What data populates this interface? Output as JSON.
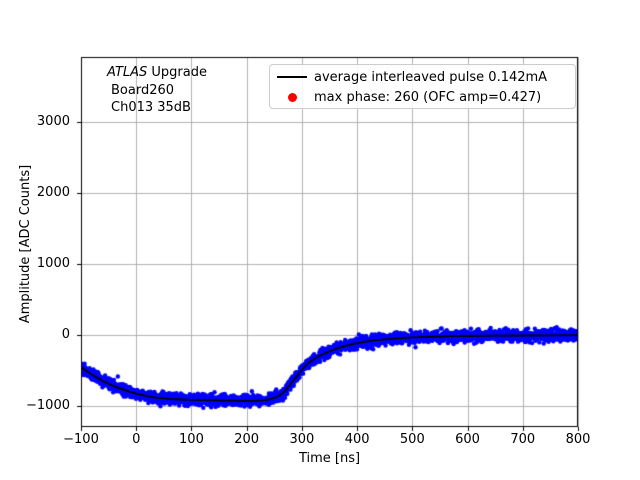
{
  "figure": {
    "background": "#ffffff"
  },
  "annotation": {
    "line1_italic": "ATLAS",
    "line1_rest": " Upgrade",
    "line2": "Board260",
    "line3": "Ch013 35dB"
  },
  "legend": {
    "position": "upper right",
    "entries": [
      {
        "marker": "line",
        "color": "#000000",
        "label": "average interleaved pulse 0.142mA"
      },
      {
        "marker": "dot",
        "color": "#ff0000",
        "label": "max phase: 260 (OFC amp=0.427)"
      }
    ]
  },
  "chart_data": {
    "type": "scatter",
    "title": "",
    "xlabel": "Time [ns]",
    "ylabel": "Amplitude [ADC Counts]",
    "xlim": [
      -100,
      800
    ],
    "ylim": [
      -1300,
      3920
    ],
    "xticks": [
      -100,
      0,
      100,
      200,
      300,
      400,
      500,
      600,
      700,
      800
    ],
    "yticks": [
      -1000,
      0,
      1000,
      2000,
      3000
    ],
    "grid": true,
    "grid_color": "#b0b0b0",
    "spine_color": "#000000",
    "series": [
      {
        "name": "average interleaved pulse 0.142mA",
        "type": "line",
        "color": "#000000",
        "line_width": 1.8,
        "points": [
          [
            -100,
            -450
          ],
          [
            -90,
            -510
          ],
          [
            -80,
            -563
          ],
          [
            -70,
            -610
          ],
          [
            -60,
            -652
          ],
          [
            -50,
            -690
          ],
          [
            -40,
            -724
          ],
          [
            -30,
            -754
          ],
          [
            -20,
            -781
          ],
          [
            -10,
            -806
          ],
          [
            0,
            -828
          ],
          [
            10,
            -848
          ],
          [
            20,
            -864
          ],
          [
            30,
            -877
          ],
          [
            40,
            -888
          ],
          [
            50,
            -896
          ],
          [
            60,
            -903
          ],
          [
            70,
            -908
          ],
          [
            80,
            -912
          ],
          [
            90,
            -915
          ],
          [
            100,
            -917
          ],
          [
            120,
            -921
          ],
          [
            140,
            -924
          ],
          [
            160,
            -927
          ],
          [
            180,
            -929
          ],
          [
            200,
            -931
          ],
          [
            210,
            -931
          ],
          [
            220,
            -929
          ],
          [
            230,
            -923
          ],
          [
            240,
            -912
          ],
          [
            250,
            -890
          ],
          [
            260,
            -852
          ],
          [
            270,
            -790
          ],
          [
            280,
            -690
          ],
          [
            290,
            -592
          ],
          [
            300,
            -495
          ],
          [
            310,
            -408
          ],
          [
            320,
            -352
          ],
          [
            330,
            -305
          ],
          [
            340,
            -266
          ],
          [
            350,
            -232
          ],
          [
            360,
            -203
          ],
          [
            370,
            -178
          ],
          [
            380,
            -156
          ],
          [
            390,
            -136
          ],
          [
            400,
            -118
          ],
          [
            415,
            -96
          ],
          [
            430,
            -79
          ],
          [
            445,
            -66
          ],
          [
            460,
            -56
          ],
          [
            480,
            -45
          ],
          [
            500,
            -36
          ],
          [
            525,
            -28
          ],
          [
            550,
            -23
          ],
          [
            575,
            -19
          ],
          [
            600,
            -16
          ],
          [
            650,
            -12
          ],
          [
            700,
            -9
          ],
          [
            750,
            -6
          ],
          [
            800,
            -4
          ]
        ]
      },
      {
        "name": "interleaved pulse samples",
        "type": "scatter",
        "color": "#0000ff",
        "marker_radius": 2.2,
        "noise_sigma": 40,
        "num_points": 2600,
        "follows_series": 0
      },
      {
        "name": "max phase: 260 (OFC amp=0.427)",
        "type": "scatter",
        "color": "#ff0000",
        "marker_radius": 4.5,
        "points": []
      }
    ]
  }
}
